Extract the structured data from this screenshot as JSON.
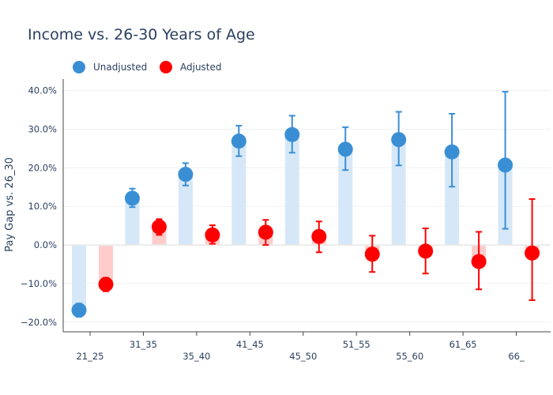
{
  "chart_data": {
    "type": "bar",
    "title": "Income vs. 26-30 Years of Age",
    "xlabel": "",
    "ylabel": "Pay Gap vs. 26_30",
    "ylim": [
      -22.5,
      43
    ],
    "y_ticks": [
      -20,
      -10,
      0,
      10,
      20,
      30,
      40
    ],
    "y_tick_labels": [
      "−20.0%",
      "−10.0%",
      "0.0%",
      "10.0%",
      "20.0%",
      "30.0%",
      "40.0%"
    ],
    "categories": [
      "21_25",
      "31_35",
      "35_40",
      "41_45",
      "45_50",
      "51_55",
      "55_60",
      "61_65",
      "66_"
    ],
    "legend": {
      "placement": "top-left",
      "entries": [
        "Unadjusted",
        "Adjusted"
      ]
    },
    "series": [
      {
        "name": "Unadjusted",
        "color": "#3a8fd4",
        "bar_color": "#d6e8f7",
        "values": [
          -16.9,
          12.1,
          18.3,
          26.9,
          28.6,
          24.8,
          27.3,
          24.1,
          20.7
        ],
        "error_low": [
          -18.6,
          9.8,
          15.4,
          23.0,
          23.9,
          19.4,
          20.6,
          15.1,
          4.2
        ],
        "error_high": [
          -15.2,
          14.6,
          21.2,
          30.9,
          33.5,
          30.5,
          34.5,
          34.0,
          39.7
        ]
      },
      {
        "name": "Adjusted",
        "color": "#ff0000",
        "bar_color": "#ffcccc",
        "values": [
          -10.2,
          4.7,
          2.6,
          3.3,
          2.2,
          -2.4,
          -1.6,
          -4.3,
          -2.1
        ],
        "error_low": [
          -12.0,
          2.6,
          0.3,
          0.0,
          -1.9,
          -7.0,
          -7.4,
          -11.5,
          -14.3
        ],
        "error_high": [
          -8.5,
          6.7,
          5.1,
          6.5,
          6.1,
          2.4,
          4.3,
          3.4,
          11.9
        ]
      }
    ]
  }
}
